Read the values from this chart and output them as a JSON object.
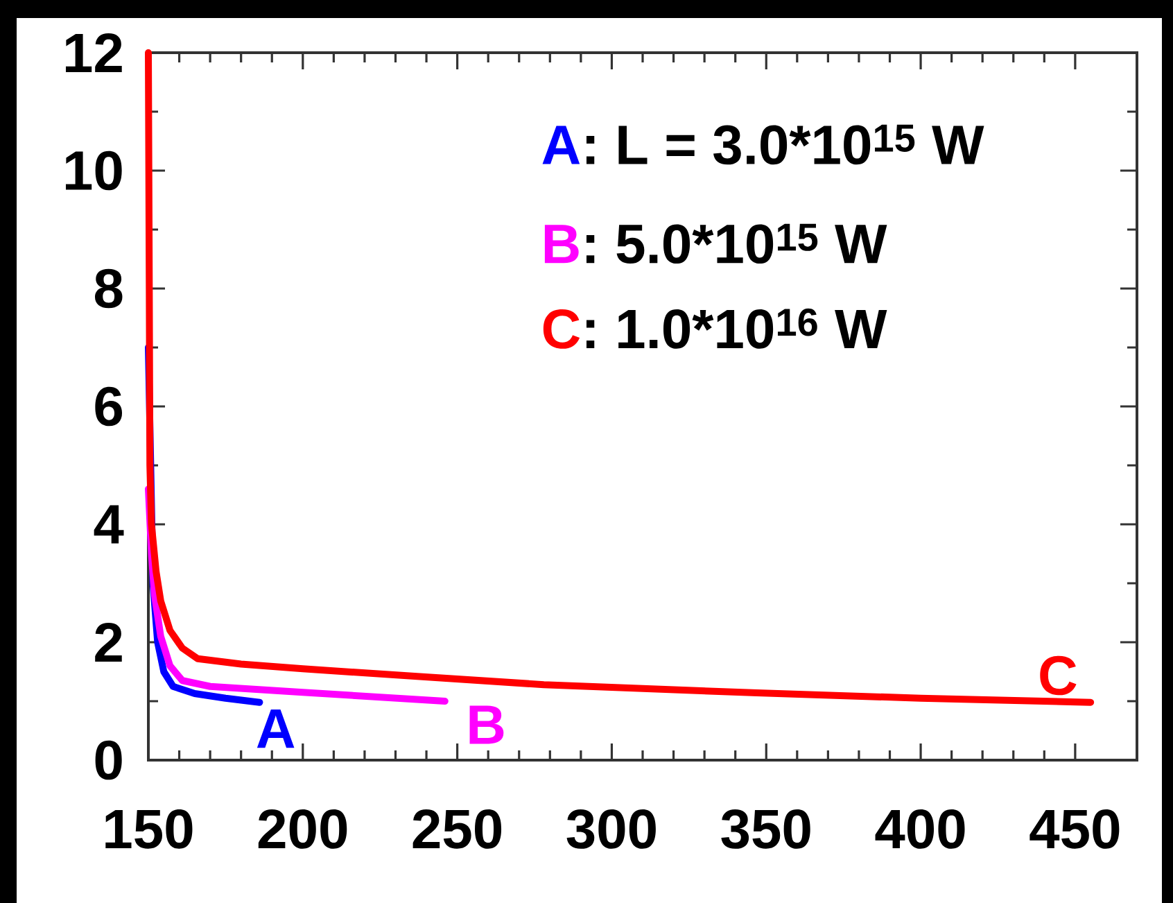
{
  "chart_data": {
    "type": "line",
    "xlim": [
      150,
      470
    ],
    "ylim": [
      0,
      12
    ],
    "xticks": [
      150,
      200,
      250,
      300,
      350,
      400,
      450
    ],
    "yticks": [
      0,
      2,
      4,
      6,
      8,
      10,
      12
    ],
    "annotations": [
      ": L = 3.0*10$^{15}$ W",
      ":  5.0*10$^{15}$ W",
      ":  1.0*10$^{16}$ W"
    ],
    "series": [
      {
        "name": "A",
        "color": "#0000ff",
        "x": [
          150,
          151.5,
          153,
          155,
          158,
          165,
          175,
          186
        ],
        "values": [
          7,
          3,
          2,
          1.5,
          1.25,
          1.13,
          1.05,
          0.98
        ]
      },
      {
        "name": "B",
        "color": "#ff00ff",
        "x": [
          150,
          151,
          152,
          154,
          157,
          161,
          170,
          200,
          246
        ],
        "values": [
          4.6,
          3.5,
          2.8,
          2.1,
          1.6,
          1.35,
          1.25,
          1.15,
          1.0
        ]
      },
      {
        "name": "C",
        "color": "#ff0000",
        "x": [
          150,
          150.3,
          150.5,
          151,
          152.5,
          154,
          157,
          161,
          166,
          180,
          200,
          237,
          278,
          347,
          400,
          455
        ],
        "values": [
          12,
          8,
          5,
          4,
          3.2,
          2.7,
          2.2,
          1.9,
          1.72,
          1.63,
          1.55,
          1.42,
          1.28,
          1.14,
          1.05,
          0.98
        ]
      }
    ]
  }
}
